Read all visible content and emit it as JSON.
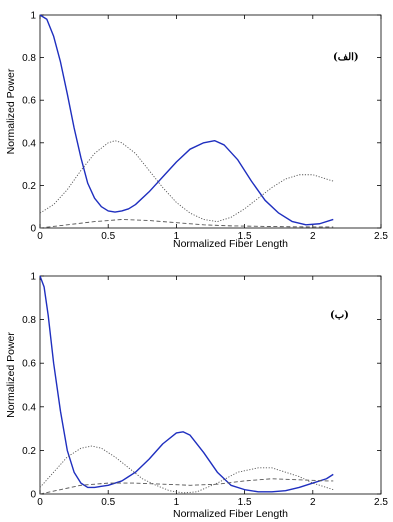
{
  "chart_data": [
    {
      "type": "line",
      "panel_label": "(الف)",
      "xlabel": "Normalized Fiber Length",
      "ylabel": "Normalized Power",
      "xlim": [
        0,
        2.5
      ],
      "ylim": [
        0,
        1
      ],
      "xticks": [
        "0",
        "0.5",
        "1",
        "1.5",
        "2",
        "2.5"
      ],
      "yticks": [
        "0",
        "0.2",
        "0.4",
        "0.6",
        "0.8",
        "1"
      ],
      "grid": false,
      "series": [
        {
          "style": "solid",
          "color": "#1f2fbf",
          "x": [
            0,
            0.05,
            0.1,
            0.15,
            0.2,
            0.25,
            0.3,
            0.35,
            0.4,
            0.45,
            0.5,
            0.55,
            0.6,
            0.65,
            0.7,
            0.8,
            0.9,
            1.0,
            1.1,
            1.2,
            1.28,
            1.35,
            1.45,
            1.55,
            1.65,
            1.75,
            1.85,
            1.95,
            2.05,
            2.15
          ],
          "y": [
            1.0,
            0.98,
            0.9,
            0.78,
            0.63,
            0.47,
            0.33,
            0.21,
            0.14,
            0.1,
            0.08,
            0.075,
            0.08,
            0.09,
            0.11,
            0.17,
            0.24,
            0.31,
            0.37,
            0.4,
            0.41,
            0.39,
            0.32,
            0.22,
            0.13,
            0.07,
            0.03,
            0.015,
            0.02,
            0.04
          ]
        },
        {
          "style": "dotted",
          "color": "#555555",
          "x": [
            0,
            0.1,
            0.2,
            0.3,
            0.4,
            0.5,
            0.55,
            0.6,
            0.7,
            0.8,
            0.9,
            1.0,
            1.1,
            1.2,
            1.3,
            1.4,
            1.5,
            1.6,
            1.7,
            1.8,
            1.9,
            2.0,
            2.1,
            2.15
          ],
          "y": [
            0.07,
            0.11,
            0.18,
            0.27,
            0.35,
            0.4,
            0.41,
            0.4,
            0.35,
            0.27,
            0.19,
            0.12,
            0.07,
            0.04,
            0.03,
            0.05,
            0.09,
            0.14,
            0.19,
            0.23,
            0.25,
            0.25,
            0.23,
            0.22
          ]
        },
        {
          "style": "dashed",
          "color": "#555555",
          "x": [
            0,
            0.2,
            0.4,
            0.6,
            0.8,
            1.0,
            1.2,
            1.4,
            1.6,
            1.8,
            2.0,
            2.15
          ],
          "y": [
            0.0,
            0.015,
            0.03,
            0.04,
            0.035,
            0.025,
            0.015,
            0.01,
            0.008,
            0.006,
            0.005,
            0.005
          ]
        }
      ]
    },
    {
      "type": "line",
      "panel_label": "(ب)",
      "xlabel": "Normalized Fiber Length",
      "ylabel": "Normalized Power",
      "xlim": [
        0,
        2.5
      ],
      "ylim": [
        0,
        1
      ],
      "xticks": [
        "0",
        "0.5",
        "1",
        "1.5",
        "2",
        "2.5"
      ],
      "yticks": [
        "0",
        "0.2",
        "0.4",
        "0.6",
        "0.8",
        "1"
      ],
      "grid": false,
      "series": [
        {
          "style": "solid",
          "color": "#1f2fbf",
          "x": [
            0,
            0.03,
            0.06,
            0.1,
            0.15,
            0.2,
            0.25,
            0.3,
            0.35,
            0.4,
            0.45,
            0.5,
            0.6,
            0.7,
            0.8,
            0.9,
            1.0,
            1.05,
            1.1,
            1.2,
            1.3,
            1.4,
            1.5,
            1.6,
            1.7,
            1.8,
            1.9,
            2.0,
            2.1,
            2.15
          ],
          "y": [
            1.0,
            0.95,
            0.82,
            0.6,
            0.38,
            0.2,
            0.1,
            0.05,
            0.03,
            0.03,
            0.035,
            0.04,
            0.06,
            0.1,
            0.16,
            0.23,
            0.28,
            0.285,
            0.27,
            0.19,
            0.1,
            0.04,
            0.02,
            0.01,
            0.01,
            0.015,
            0.03,
            0.05,
            0.07,
            0.09
          ]
        },
        {
          "style": "dotted",
          "color": "#555555",
          "x": [
            0,
            0.1,
            0.2,
            0.3,
            0.38,
            0.45,
            0.55,
            0.65,
            0.75,
            0.85,
            0.95,
            1.05,
            1.15,
            1.3,
            1.45,
            1.6,
            1.7,
            1.8,
            1.9,
            2.0,
            2.1,
            2.15
          ],
          "y": [
            0.03,
            0.1,
            0.17,
            0.21,
            0.22,
            0.21,
            0.17,
            0.12,
            0.07,
            0.04,
            0.015,
            0.005,
            0.01,
            0.05,
            0.1,
            0.12,
            0.12,
            0.1,
            0.08,
            0.05,
            0.03,
            0.02
          ]
        },
        {
          "style": "dashed",
          "color": "#555555",
          "x": [
            0,
            0.15,
            0.3,
            0.5,
            0.7,
            0.9,
            1.1,
            1.3,
            1.5,
            1.7,
            1.9,
            2.1,
            2.15
          ],
          "y": [
            0.0,
            0.02,
            0.04,
            0.05,
            0.05,
            0.045,
            0.04,
            0.045,
            0.06,
            0.07,
            0.065,
            0.06,
            0.06
          ]
        }
      ]
    }
  ]
}
